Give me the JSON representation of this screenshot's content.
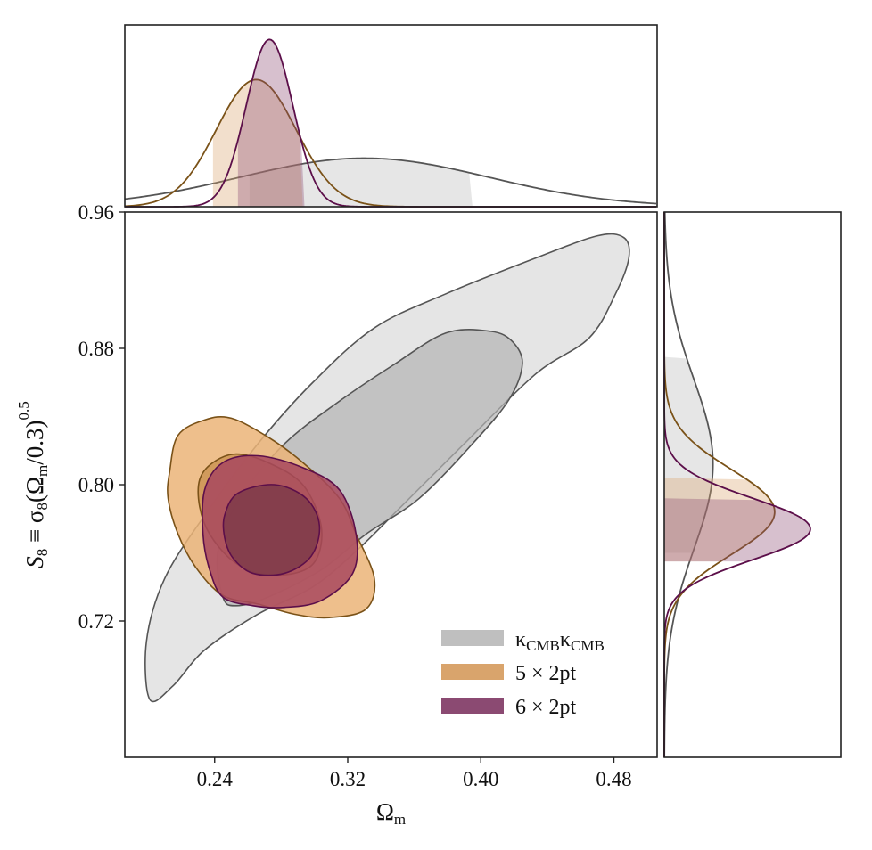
{
  "chart_data": {
    "type": "contour",
    "xlabel_parts": [
      "Ω",
      "m"
    ],
    "ylabel_parts": [
      "S",
      "8",
      " ≡ σ",
      "8",
      "(Ω",
      "m",
      "/0.3)",
      "0.5"
    ],
    "xlim": [
      0.186,
      0.506
    ],
    "ylim": [
      0.64,
      0.96
    ],
    "xticks": [
      "0.24",
      "0.32",
      "0.40",
      "0.48"
    ],
    "xtick_values": [
      0.24,
      0.32,
      0.4,
      0.48
    ],
    "yticks": [
      "0.72",
      "0.80",
      "0.88",
      "0.96"
    ],
    "ytick_values": [
      0.72,
      0.8,
      0.88,
      0.96
    ],
    "legend_position": "lower-right",
    "series": [
      {
        "name": "kCMBkCMB",
        "legend_parts": [
          "κ",
          "CMB",
          "κ",
          "CMB"
        ],
        "color": "#b8b8b8",
        "edge": "#555555",
        "inner_color": "#b3b3b3",
        "outer_color": "#dcdcdc",
        "contour_95": [
          [
            0.201,
            0.674
          ],
          [
            0.215,
            0.682
          ],
          [
            0.234,
            0.703
          ],
          [
            0.266,
            0.724
          ],
          [
            0.299,
            0.74
          ],
          [
            0.325,
            0.761
          ],
          [
            0.352,
            0.787
          ],
          [
            0.39,
            0.824
          ],
          [
            0.433,
            0.865
          ],
          [
            0.465,
            0.886
          ],
          [
            0.481,
            0.912
          ],
          [
            0.489,
            0.933
          ],
          [
            0.486,
            0.945
          ],
          [
            0.47,
            0.946
          ],
          [
            0.433,
            0.933
          ],
          [
            0.379,
            0.912
          ],
          [
            0.336,
            0.892
          ],
          [
            0.299,
            0.86
          ],
          [
            0.266,
            0.824
          ],
          [
            0.234,
            0.782
          ],
          [
            0.21,
            0.745
          ],
          [
            0.199,
            0.708
          ]
        ],
        "contour_68": [
          [
            0.253,
            0.729
          ],
          [
            0.272,
            0.734
          ],
          [
            0.304,
            0.75
          ],
          [
            0.331,
            0.771
          ],
          [
            0.363,
            0.792
          ],
          [
            0.395,
            0.824
          ],
          [
            0.417,
            0.85
          ],
          [
            0.425,
            0.871
          ],
          [
            0.419,
            0.884
          ],
          [
            0.406,
            0.89
          ],
          [
            0.379,
            0.889
          ],
          [
            0.347,
            0.87
          ],
          [
            0.315,
            0.849
          ],
          [
            0.282,
            0.824
          ],
          [
            0.255,
            0.792
          ],
          [
            0.242,
            0.761
          ],
          [
            0.245,
            0.734
          ]
        ],
        "omega_m": {
          "mean": 0.33,
          "sigma": 0.075,
          "peak": 0.29,
          "band": [
            0.261,
            0.395
          ]
        },
        "s8": {
          "mean": 0.812,
          "sigma": 0.05,
          "peak": 0.3,
          "band": [
            0.76,
            0.875
          ]
        }
      },
      {
        "name": "5 × 2pt",
        "legend_parts": [
          "5 × 2pt"
        ],
        "color": "#d9a46c",
        "edge": "#7a5218",
        "inner_color": "#c99250",
        "outer_color": "#ebb478",
        "contour_95": [
          [
            0.213,
            0.808
          ],
          [
            0.218,
            0.829
          ],
          [
            0.234,
            0.838
          ],
          [
            0.25,
            0.839
          ],
          [
            0.272,
            0.828
          ],
          [
            0.293,
            0.813
          ],
          [
            0.315,
            0.792
          ],
          [
            0.325,
            0.771
          ],
          [
            0.336,
            0.745
          ],
          [
            0.331,
            0.727
          ],
          [
            0.309,
            0.722
          ],
          [
            0.288,
            0.724
          ],
          [
            0.266,
            0.73
          ],
          [
            0.245,
            0.735
          ],
          [
            0.229,
            0.751
          ],
          [
            0.218,
            0.771
          ],
          [
            0.212,
            0.792
          ]
        ],
        "contour_68": [
          [
            0.231,
            0.803
          ],
          [
            0.239,
            0.813
          ],
          [
            0.253,
            0.818
          ],
          [
            0.272,
            0.813
          ],
          [
            0.293,
            0.8
          ],
          [
            0.304,
            0.776
          ],
          [
            0.301,
            0.756
          ],
          [
            0.288,
            0.748
          ],
          [
            0.266,
            0.748
          ],
          [
            0.25,
            0.756
          ],
          [
            0.237,
            0.771
          ],
          [
            0.231,
            0.787
          ]
        ],
        "omega_m": {
          "mean": 0.265,
          "sigma": 0.024,
          "peak": 0.76,
          "band": [
            0.239,
            0.293
          ]
        },
        "s8": {
          "mean": 0.784,
          "sigma": 0.025,
          "peak": 0.68,
          "band": [
            0.755,
            0.804
          ]
        }
      },
      {
        "name": "6 × 2pt",
        "legend_parts": [
          "6 × 2pt"
        ],
        "color": "#8b4a72",
        "edge": "#5c0f4a",
        "inner_color": "#7a3848",
        "outer_color": "#a8485e",
        "contour_95": [
          [
            0.234,
            0.797
          ],
          [
            0.245,
            0.813
          ],
          [
            0.266,
            0.817
          ],
          [
            0.293,
            0.81
          ],
          [
            0.315,
            0.797
          ],
          [
            0.325,
            0.771
          ],
          [
            0.323,
            0.748
          ],
          [
            0.304,
            0.732
          ],
          [
            0.282,
            0.728
          ],
          [
            0.263,
            0.729
          ],
          [
            0.245,
            0.734
          ],
          [
            0.237,
            0.75
          ],
          [
            0.233,
            0.771
          ]
        ],
        "contour_68": [
          [
            0.246,
            0.782
          ],
          [
            0.254,
            0.795
          ],
          [
            0.276,
            0.8
          ],
          [
            0.295,
            0.792
          ],
          [
            0.303,
            0.776
          ],
          [
            0.298,
            0.758
          ],
          [
            0.282,
            0.748
          ],
          [
            0.263,
            0.748
          ],
          [
            0.251,
            0.757
          ],
          [
            0.246,
            0.769
          ]
        ],
        "omega_m": {
          "mean": 0.273,
          "sigma": 0.014,
          "peak": 1.0,
          "band": [
            0.254,
            0.294
          ]
        },
        "s8": {
          "mean": 0.774,
          "sigma": 0.018,
          "peak": 0.9,
          "band": [
            0.755,
            0.792
          ]
        }
      }
    ]
  }
}
